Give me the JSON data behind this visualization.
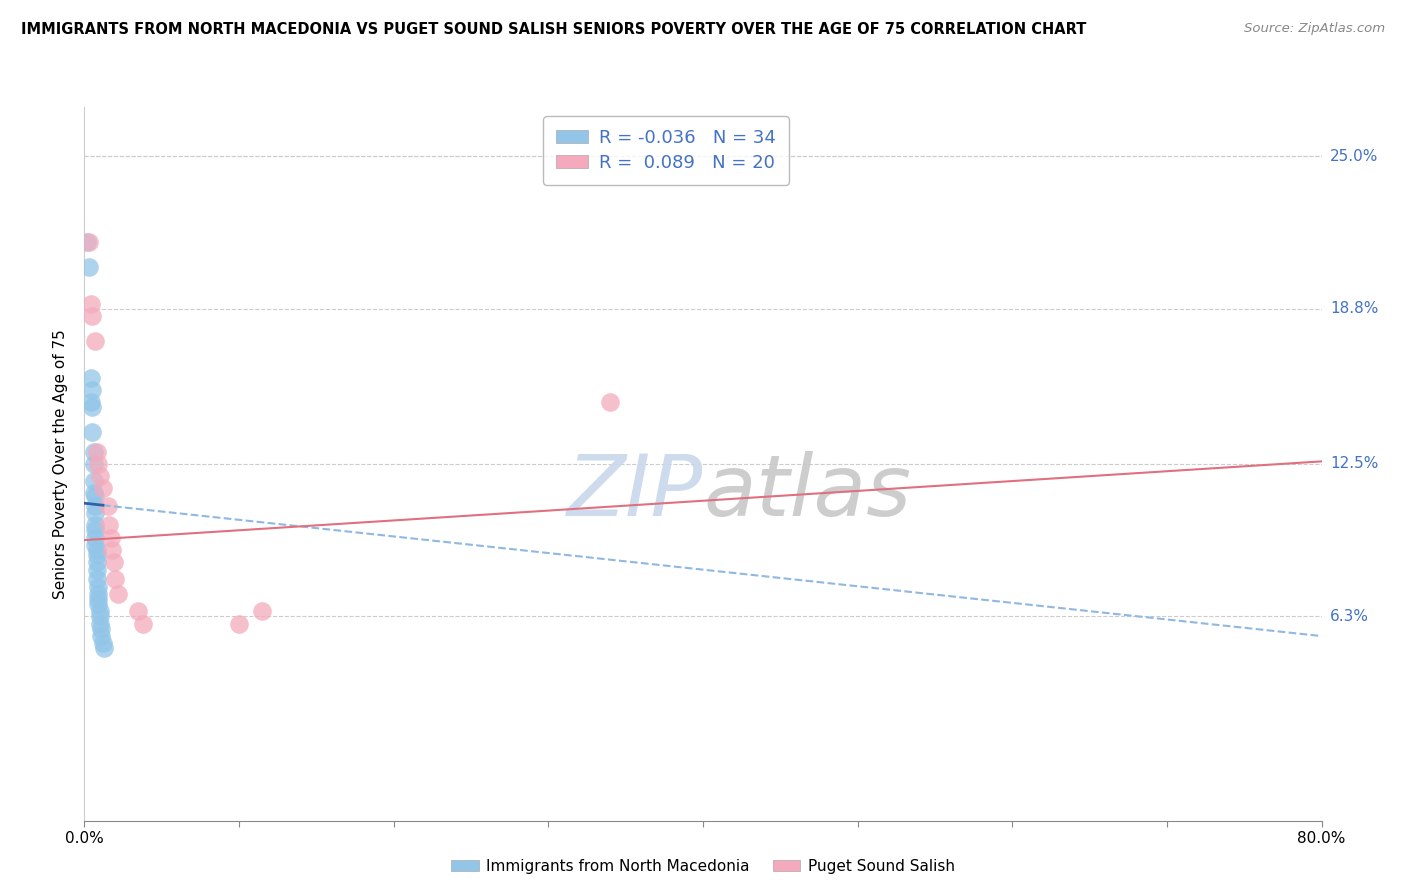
{
  "title": "IMMIGRANTS FROM NORTH MACEDONIA VS PUGET SOUND SALISH SENIORS POVERTY OVER THE AGE OF 75 CORRELATION CHART",
  "source": "Source: ZipAtlas.com",
  "ylabel": "Seniors Poverty Over the Age of 75",
  "xlim": [
    0.0,
    0.8
  ],
  "ylim": [
    -0.02,
    0.27
  ],
  "blue_R": -0.036,
  "blue_N": 34,
  "pink_R": 0.089,
  "pink_N": 20,
  "blue_label": "Immigrants from North Macedonia",
  "pink_label": "Puget Sound Salish",
  "blue_color": "#92C5E8",
  "pink_color": "#F4AABC",
  "blue_line_solid_color": "#3060A8",
  "blue_line_dash_color": "#90B8E0",
  "pink_line_color": "#E07080",
  "blue_x": [
    0.002,
    0.003,
    0.004,
    0.004,
    0.005,
    0.005,
    0.005,
    0.006,
    0.006,
    0.006,
    0.006,
    0.007,
    0.007,
    0.007,
    0.007,
    0.007,
    0.007,
    0.007,
    0.008,
    0.008,
    0.008,
    0.008,
    0.008,
    0.009,
    0.009,
    0.009,
    0.009,
    0.01,
    0.01,
    0.01,
    0.011,
    0.011,
    0.012,
    0.013
  ],
  "blue_y": [
    0.215,
    0.205,
    0.16,
    0.15,
    0.155,
    0.148,
    0.138,
    0.13,
    0.125,
    0.118,
    0.113,
    0.112,
    0.108,
    0.105,
    0.1,
    0.098,
    0.095,
    0.092,
    0.09,
    0.088,
    0.085,
    0.082,
    0.078,
    0.075,
    0.072,
    0.07,
    0.068,
    0.065,
    0.063,
    0.06,
    0.058,
    0.055,
    0.052,
    0.05
  ],
  "pink_x": [
    0.003,
    0.004,
    0.005,
    0.007,
    0.008,
    0.009,
    0.01,
    0.012,
    0.015,
    0.016,
    0.017,
    0.018,
    0.019,
    0.02,
    0.022,
    0.035,
    0.038,
    0.1,
    0.115,
    0.34
  ],
  "pink_y": [
    0.215,
    0.19,
    0.185,
    0.175,
    0.13,
    0.125,
    0.12,
    0.115,
    0.108,
    0.1,
    0.095,
    0.09,
    0.085,
    0.078,
    0.072,
    0.065,
    0.06,
    0.06,
    0.065,
    0.15
  ],
  "blue_trend_x0": 0.0,
  "blue_trend_y0": 0.109,
  "blue_trend_x1": 0.8,
  "blue_trend_y1": 0.055,
  "pink_trend_x0": 0.0,
  "pink_trend_y0": 0.094,
  "pink_trend_x1": 0.8,
  "pink_trend_y1": 0.126,
  "ytick_vals": [
    0.063,
    0.125,
    0.188,
    0.25
  ],
  "ytick_labels": [
    "6.3%",
    "12.5%",
    "18.8%",
    "25.0%"
  ],
  "background_color": "#FFFFFF",
  "grid_color": "#CCCCCC",
  "label_color": "#4472C4",
  "watermark": "ZIPatlas"
}
